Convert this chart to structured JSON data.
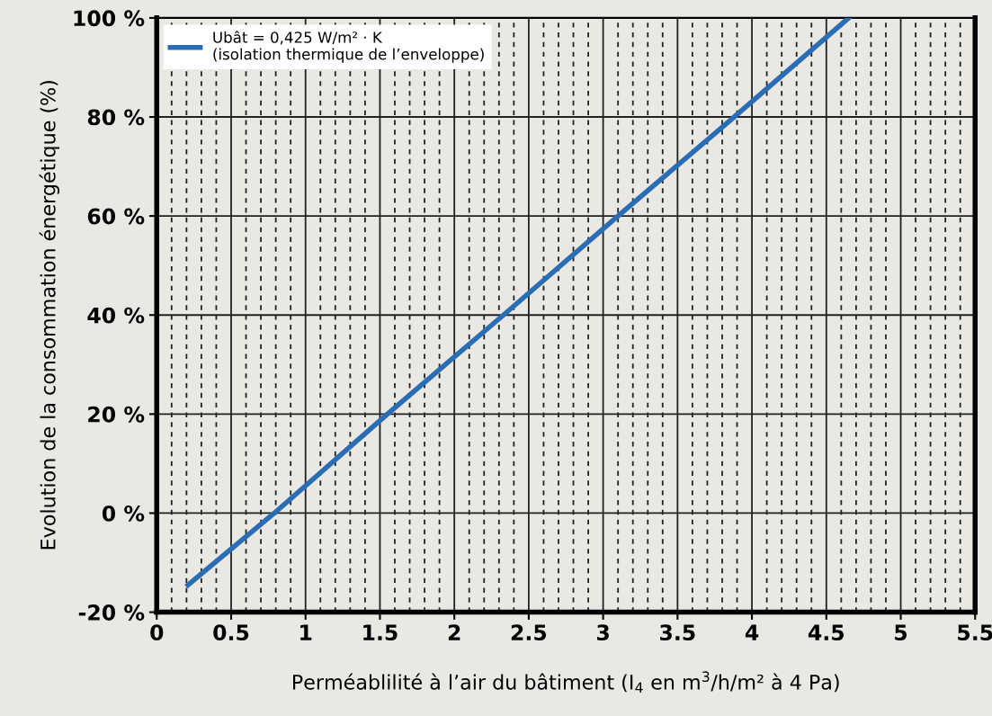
{
  "chart_data": {
    "type": "line",
    "xlabel": "Perméablilité à l’air du bâtiment (I$_{4}$ en m$^{3}$/h/m² à 4 Pa)",
    "ylabel": "Evolution de la consommation énergétique (%)",
    "series": [
      {
        "name": "Ubât = 0,425 W/m² · K\n(isolation thermique de l’enveloppe)",
        "color": "#2a6db5",
        "x": [
          0.21,
          0.79,
          1.55,
          2.33,
          3.1,
          3.88,
          4.65
        ],
        "values": [
          -14.5,
          0,
          20,
          40,
          60,
          80,
          100
        ]
      }
    ],
    "xlim": [
      0,
      5.5
    ],
    "xticks": [
      0,
      0.5,
      1,
      1.5,
      2,
      2.5,
      3,
      3.5,
      4,
      4.5,
      5,
      5.5
    ],
    "ylim": [
      -20,
      100
    ],
    "yticks": [
      {
        "value": -20,
        "label": "-20 %"
      },
      {
        "value": 0,
        "label": "0 %"
      },
      {
        "value": 20,
        "label": "20 %"
      },
      {
        "value": 40,
        "label": "40 %"
      },
      {
        "value": 60,
        "label": "60 %"
      },
      {
        "value": 80,
        "label": "80 %"
      },
      {
        "value": 100,
        "label": "100 %"
      }
    ],
    "grid": true,
    "legend": "top left",
    "marker": "none",
    "line_style": "solid"
  }
}
